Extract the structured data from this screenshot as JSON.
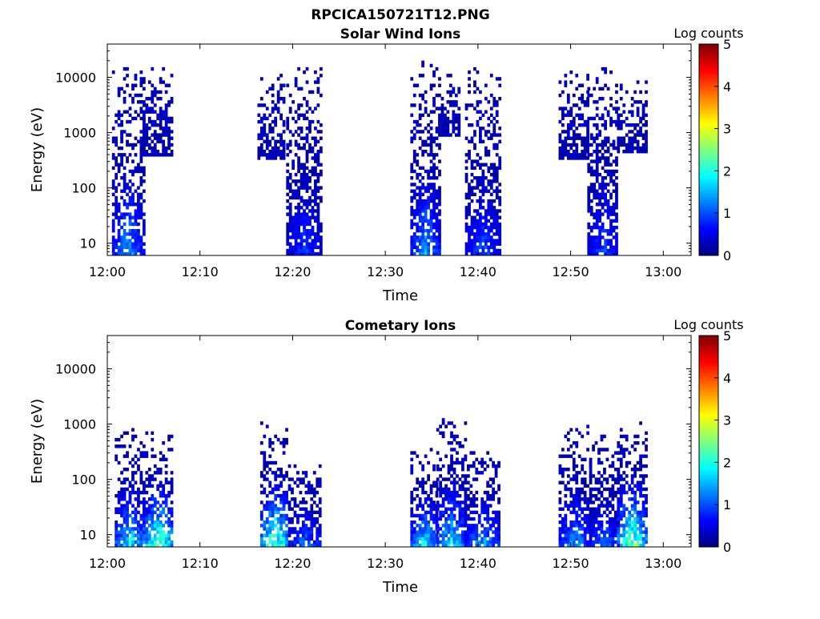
{
  "figure_title": "RPCICA150721T12.PNG",
  "colors": {
    "colormap": [
      "#00007f",
      "#0000ff",
      "#007fff",
      "#00ffff",
      "#7fff7f",
      "#ffff00",
      "#ff7f00",
      "#ff0000",
      "#7f0000"
    ]
  },
  "chart_data": [
    {
      "type": "heatmap",
      "title": "Solar Wind Ions",
      "xlabel": "Time",
      "ylabel": "Energy (eV)",
      "x_range": [
        "12:00",
        "13:03"
      ],
      "x_ticks": [
        "12:00",
        "12:10",
        "12:20",
        "12:30",
        "12:40",
        "12:50",
        "13:00"
      ],
      "y_scale": "log",
      "y_range": [
        6,
        40000
      ],
      "y_ticks": [
        "10",
        "100",
        "1000",
        "10000"
      ],
      "colorbar": {
        "label": "Log counts",
        "range": [
          0,
          5
        ],
        "ticks": [
          "0",
          "1",
          "2",
          "3",
          "4",
          "5"
        ]
      },
      "grid": false,
      "bursts": [
        {
          "t_start": 0.5,
          "t_end": 3.8,
          "e_min": 6,
          "e_max": 15000,
          "peak_log_counts": 1.8
        },
        {
          "t_start": 3.5,
          "t_end": 7.0,
          "e_min": 350,
          "e_max": 15000,
          "peak_log_counts": 0.5
        },
        {
          "t_start": 16.2,
          "t_end": 19.0,
          "e_min": 300,
          "e_max": 12000,
          "peak_log_counts": 0.5
        },
        {
          "t_start": 19.3,
          "t_end": 23.0,
          "e_min": 6,
          "e_max": 15000,
          "peak_log_counts": 1.2
        },
        {
          "t_start": 32.7,
          "t_end": 35.7,
          "e_min": 6,
          "e_max": 20000,
          "peak_log_counts": 1.8
        },
        {
          "t_start": 35.7,
          "t_end": 38.0,
          "e_min": 800,
          "e_max": 12000,
          "peak_log_counts": 0.5
        },
        {
          "t_start": 38.6,
          "t_end": 42.3,
          "e_min": 6,
          "e_max": 15000,
          "peak_log_counts": 1.3
        },
        {
          "t_start": 48.7,
          "t_end": 51.8,
          "e_min": 300,
          "e_max": 12000,
          "peak_log_counts": 0.5
        },
        {
          "t_start": 51.8,
          "t_end": 55.0,
          "e_min": 6,
          "e_max": 15000,
          "peak_log_counts": 1.3
        },
        {
          "t_start": 55.0,
          "t_end": 58.0,
          "e_min": 400,
          "e_max": 8000,
          "peak_log_counts": 0.5
        }
      ]
    },
    {
      "type": "heatmap",
      "title": "Cometary Ions",
      "xlabel": "Time",
      "ylabel": "Energy (eV)",
      "x_range": [
        "12:00",
        "13:03"
      ],
      "x_ticks": [
        "12:00",
        "12:10",
        "12:20",
        "12:30",
        "12:40",
        "12:50",
        "13:00"
      ],
      "y_scale": "log",
      "y_range": [
        6,
        40000
      ],
      "y_ticks": [
        "10",
        "100",
        "1000",
        "10000"
      ],
      "colorbar": {
        "label": "Log counts",
        "range": [
          0,
          5
        ],
        "ticks": [
          "0",
          "1",
          "2",
          "3",
          "4",
          "5"
        ]
      },
      "grid": false,
      "bursts": [
        {
          "t_start": 0.8,
          "t_end": 3.8,
          "e_min": 6,
          "e_max": 900,
          "peak_log_counts": 2.5
        },
        {
          "t_start": 3.8,
          "t_end": 7.0,
          "e_min": 6,
          "e_max": 800,
          "peak_log_counts": 3.3
        },
        {
          "t_start": 16.5,
          "t_end": 19.5,
          "e_min": 6,
          "e_max": 1000,
          "peak_log_counts": 3.3
        },
        {
          "t_start": 19.5,
          "t_end": 23.0,
          "e_min": 6,
          "e_max": 200,
          "peak_log_counts": 1.6
        },
        {
          "t_start": 32.7,
          "t_end": 35.5,
          "e_min": 6,
          "e_max": 400,
          "peak_log_counts": 2.5
        },
        {
          "t_start": 35.5,
          "t_end": 38.5,
          "e_min": 6,
          "e_max": 1200,
          "peak_log_counts": 2.4
        },
        {
          "t_start": 38.5,
          "t_end": 42.3,
          "e_min": 6,
          "e_max": 400,
          "peak_log_counts": 1.9
        },
        {
          "t_start": 48.7,
          "t_end": 52.0,
          "e_min": 6,
          "e_max": 900,
          "peak_log_counts": 1.9
        },
        {
          "t_start": 52.0,
          "t_end": 55.0,
          "e_min": 6,
          "e_max": 600,
          "peak_log_counts": 1.5
        },
        {
          "t_start": 55.0,
          "t_end": 58.0,
          "e_min": 6,
          "e_max": 1100,
          "peak_log_counts": 3.4
        }
      ]
    }
  ]
}
